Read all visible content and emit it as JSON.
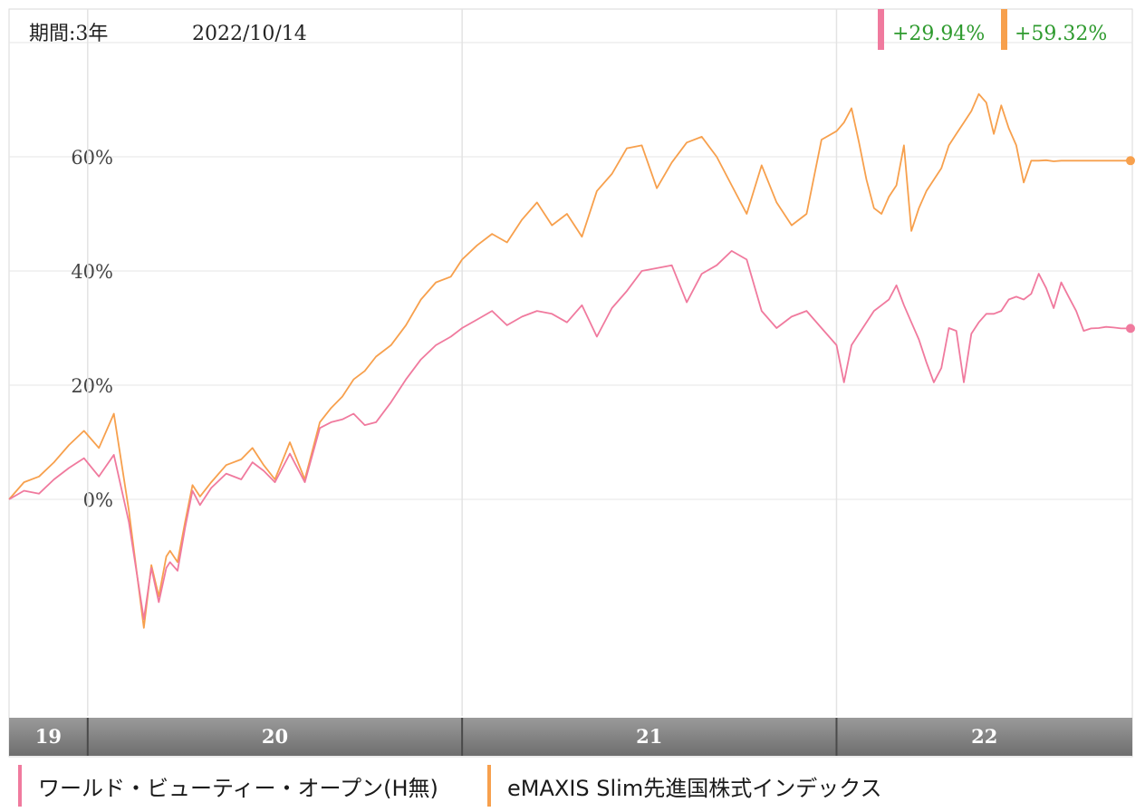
{
  "chart_data": {
    "type": "line",
    "period_label": "期間:3年",
    "date_label": "2022/10/14",
    "ylim": [
      -25,
      80
    ],
    "y_ticks": [
      {
        "value": 0,
        "label": "0%"
      },
      {
        "value": 20,
        "label": "20%"
      },
      {
        "value": 40,
        "label": "40%"
      },
      {
        "value": 60,
        "label": "60%"
      }
    ],
    "x_range": [
      2019.79,
      2022.79
    ],
    "year_bands": [
      {
        "label": "19",
        "start": 2019.79,
        "end": 2020.0
      },
      {
        "label": "20",
        "start": 2020.0,
        "end": 2021.0
      },
      {
        "label": "21",
        "start": 2021.0,
        "end": 2022.0
      },
      {
        "label": "22",
        "start": 2022.0,
        "end": 2022.79
      }
    ],
    "colors": {
      "series1": "#f07a9e",
      "series2": "#f7a04d",
      "return_text": "#2e9a2e"
    },
    "series": [
      {
        "name": "ワールド・ビューティー・オープン(H無)",
        "return_label": "+29.94%",
        "x": [
          2019.79,
          2019.83,
          2019.87,
          2019.91,
          2019.95,
          2019.99,
          2020.03,
          2020.07,
          2020.11,
          2020.15,
          2020.17,
          2020.19,
          2020.21,
          2020.22,
          2020.24,
          2020.26,
          2020.28,
          2020.3,
          2020.33,
          2020.37,
          2020.41,
          2020.44,
          2020.47,
          2020.5,
          2020.54,
          2020.58,
          2020.62,
          2020.65,
          2020.68,
          2020.71,
          2020.74,
          2020.77,
          2020.81,
          2020.85,
          2020.89,
          2020.93,
          2020.97,
          2021.0,
          2021.04,
          2021.08,
          2021.12,
          2021.16,
          2021.2,
          2021.24,
          2021.28,
          2021.32,
          2021.36,
          2021.4,
          2021.44,
          2021.48,
          2021.52,
          2021.56,
          2021.6,
          2021.64,
          2021.68,
          2021.72,
          2021.76,
          2021.8,
          2021.84,
          2021.88,
          2021.92,
          2021.96,
          2022.0,
          2022.02,
          2022.04,
          2022.06,
          2022.08,
          2022.1,
          2022.12,
          2022.14,
          2022.16,
          2022.18,
          2022.2,
          2022.22,
          2022.24,
          2022.26,
          2022.28,
          2022.3,
          2022.32,
          2022.34,
          2022.36,
          2022.38,
          2022.4,
          2022.42,
          2022.44,
          2022.46,
          2022.48,
          2022.5,
          2022.52,
          2022.54,
          2022.56,
          2022.58,
          2022.6,
          2022.62,
          2022.64,
          2022.66,
          2022.68,
          2022.7,
          2022.72,
          2022.74,
          2022.76,
          2022.79
        ],
        "y": [
          0,
          1.5,
          1.0,
          3.5,
          5.5,
          7.2,
          4.0,
          7.8,
          -4.0,
          -21.0,
          -12.0,
          -18.0,
          -12.0,
          -11.0,
          -12.5,
          -5.0,
          1.5,
          -1.0,
          2.0,
          4.5,
          3.5,
          6.5,
          5.0,
          3.0,
          8.0,
          3.0,
          12.5,
          13.5,
          14.0,
          15.0,
          13.0,
          13.5,
          17.0,
          21.0,
          24.5,
          27.0,
          28.5,
          30.0,
          31.5,
          33.0,
          30.5,
          32.0,
          33.0,
          32.5,
          31.0,
          34.0,
          28.5,
          33.5,
          36.5,
          40.0,
          40.5,
          41.0,
          34.5,
          39.5,
          41.0,
          43.5,
          42.0,
          33.0,
          30.0,
          32.0,
          33.0,
          30.0,
          27.0,
          20.5,
          27.0,
          29.0,
          31.0,
          33.0,
          34.0,
          35.0,
          37.5,
          34.0,
          31.0,
          28.0,
          24.0,
          20.5,
          23.0,
          30.0,
          29.5,
          20.5,
          29.0,
          31.0,
          32.5,
          32.5,
          33.0,
          35.0,
          35.5,
          35.0,
          36.0,
          39.5,
          37.0,
          33.5,
          38.0,
          35.5,
          33.0,
          29.5,
          29.94,
          30.0,
          30.2,
          30.1,
          29.94,
          29.94
        ]
      },
      {
        "name": "eMAXIS Slim先進国株式インデックス",
        "return_label": "+59.32%",
        "x": [
          2019.79,
          2019.83,
          2019.87,
          2019.91,
          2019.95,
          2019.99,
          2020.03,
          2020.07,
          2020.11,
          2020.15,
          2020.17,
          2020.19,
          2020.21,
          2020.22,
          2020.24,
          2020.26,
          2020.28,
          2020.3,
          2020.33,
          2020.37,
          2020.41,
          2020.44,
          2020.47,
          2020.5,
          2020.54,
          2020.58,
          2020.62,
          2020.65,
          2020.68,
          2020.71,
          2020.74,
          2020.77,
          2020.81,
          2020.85,
          2020.89,
          2020.93,
          2020.97,
          2021.0,
          2021.04,
          2021.08,
          2021.12,
          2021.16,
          2021.2,
          2021.24,
          2021.28,
          2021.32,
          2021.36,
          2021.4,
          2021.44,
          2021.48,
          2021.52,
          2021.56,
          2021.6,
          2021.64,
          2021.68,
          2021.72,
          2021.76,
          2021.8,
          2021.84,
          2021.88,
          2021.92,
          2021.96,
          2022.0,
          2022.02,
          2022.04,
          2022.06,
          2022.08,
          2022.1,
          2022.12,
          2022.14,
          2022.16,
          2022.18,
          2022.2,
          2022.22,
          2022.24,
          2022.26,
          2022.28,
          2022.3,
          2022.32,
          2022.34,
          2022.36,
          2022.38,
          2022.4,
          2022.42,
          2022.44,
          2022.46,
          2022.48,
          2022.5,
          2022.52,
          2022.54,
          2022.56,
          2022.58,
          2022.6,
          2022.62,
          2022.64,
          2022.66,
          2022.68,
          2022.7,
          2022.72,
          2022.74,
          2022.76,
          2022.79
        ],
        "y": [
          0,
          3.0,
          4.0,
          6.5,
          9.5,
          12.0,
          9.0,
          15.0,
          -2.0,
          -22.5,
          -11.5,
          -17.0,
          -10.0,
          -9.0,
          -11.0,
          -4.0,
          2.5,
          0.5,
          3.0,
          6.0,
          7.0,
          9.0,
          6.0,
          3.5,
          10.0,
          3.5,
          13.5,
          16.0,
          18.0,
          21.0,
          22.5,
          25.0,
          27.0,
          30.5,
          35.0,
          38.0,
          39.0,
          42.0,
          44.5,
          46.5,
          45.0,
          49.0,
          52.0,
          48.0,
          50.0,
          46.0,
          54.0,
          57.0,
          61.5,
          62.0,
          54.5,
          59.0,
          62.5,
          63.5,
          60.0,
          55.0,
          50.0,
          58.5,
          52.0,
          48.0,
          50.0,
          63.0,
          64.5,
          66.0,
          68.5,
          62.5,
          56.0,
          51.0,
          50.0,
          53.0,
          55.0,
          62.0,
          47.0,
          51.0,
          54.0,
          56.0,
          58.0,
          62.0,
          64.0,
          66.0,
          68.0,
          71.0,
          69.5,
          64.0,
          69.0,
          65.0,
          62.0,
          55.5,
          59.32,
          59.32,
          59.4,
          59.2,
          59.32,
          59.32,
          59.32,
          59.32,
          59.32,
          59.32,
          59.32,
          59.32,
          59.32,
          59.32
        ]
      }
    ]
  }
}
